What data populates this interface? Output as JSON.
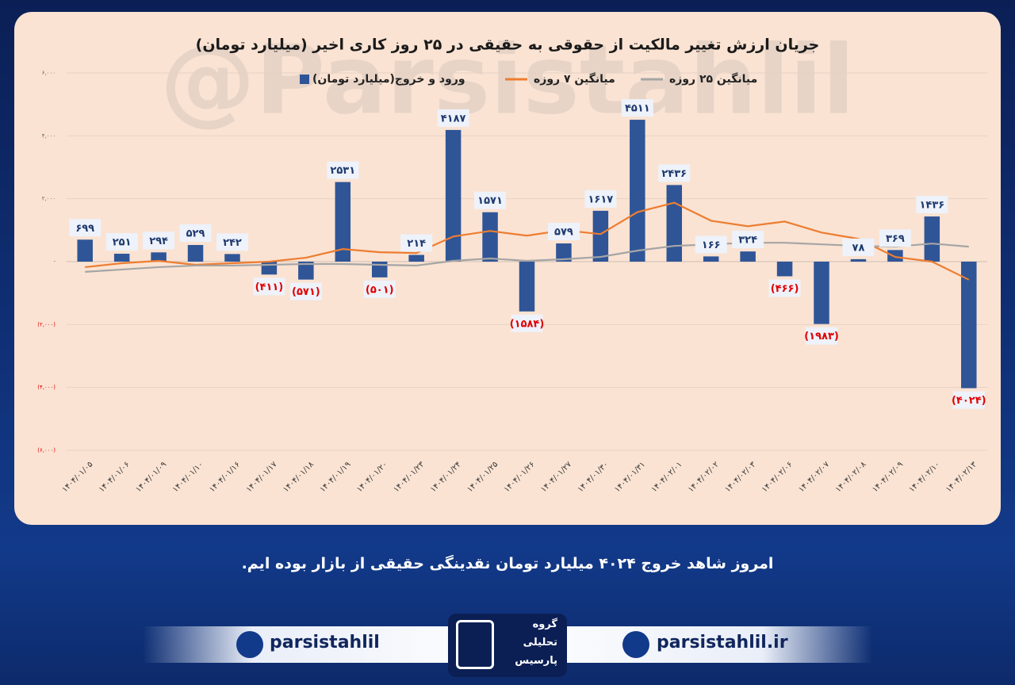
{
  "chart_data": {
    "type": "bar",
    "title": "جریان ارزش تغییر مالکیت از حقوقی به حقیقی در ۲۵ روز کاری اخیر (میلیارد تومان)",
    "categories": [
      "۱۴۰۴/۰۱/۰۵",
      "۱۴۰۴/۰۱/۰۶",
      "۱۴۰۴/۰۱/۰۹",
      "۱۴۰۴/۰۱/۱۰",
      "۱۴۰۴/۰۱/۱۶",
      "۱۴۰۴/۰۱/۱۷",
      "۱۴۰۴/۰۱/۱۸",
      "۱۴۰۴/۰۱/۱۹",
      "۱۴۰۴/۰۱/۲۰",
      "۱۴۰۴/۰۱/۲۳",
      "۱۴۰۴/۰۱/۲۴",
      "۱۴۰۴/۰۱/۲۵",
      "۱۴۰۴/۰۱/۲۶",
      "۱۴۰۴/۰۱/۲۷",
      "۱۴۰۴/۰۱/۳۰",
      "۱۴۰۴/۰۱/۳۱",
      "۱۴۰۴/۰۲/۰۱",
      "۱۴۰۴/۰۲/۰۲",
      "۱۴۰۴/۰۲/۰۳",
      "۱۴۰۴/۰۲/۰۶",
      "۱۴۰۴/۰۲/۰۷",
      "۱۴۰۴/۰۲/۰۸",
      "۱۴۰۴/۰۲/۰۹",
      "۱۴۰۴/۰۲/۱۰",
      "۱۴۰۴/۰۲/۱۳"
    ],
    "series": [
      {
        "name": "ورود و خروج(میلیارد تومان)",
        "type": "bar",
        "color": "#2f5597",
        "values": [
          699,
          251,
          294,
          529,
          242,
          -411,
          -571,
          2531,
          -501,
          214,
          4187,
          1571,
          -1584,
          579,
          1617,
          4511,
          2436,
          166,
          324,
          -466,
          -1983,
          78,
          369,
          1436,
          -4024
        ],
        "value_labels": [
          "۶۹۹",
          "۲۵۱",
          "۲۹۴",
          "۵۲۹",
          "۲۴۲",
          "(۴۱۱)",
          "(۵۷۱)",
          "۲۵۳۱",
          "(۵۰۱)",
          "۲۱۴",
          "۴۱۸۷",
          "۱۵۷۱",
          "(۱۵۸۴)",
          "۵۷۹",
          "۱۶۱۷",
          "۴۵۱۱",
          "۲۴۳۶",
          "۱۶۶",
          "۳۲۴",
          "(۴۶۶)",
          "(۱۹۸۳)",
          "۷۸",
          "۳۶۹",
          "۱۴۳۶",
          "(۴۰۲۴)"
        ]
      },
      {
        "name": "میانگین ۷ روزه",
        "type": "line",
        "color": "#ed7d31",
        "values": [
          -175,
          -50,
          25,
          -100,
          -50,
          0,
          125,
          400,
          300,
          275,
          800,
          975,
          825,
          1000,
          875,
          1575,
          1875,
          1300,
          1125,
          1275,
          925,
          725,
          150,
          0,
          -575
        ]
      },
      {
        "name": "میانگین ۲۵ روزه",
        "type": "line",
        "color": "#a5a5a5",
        "values": [
          -325,
          -250,
          -175,
          -125,
          -125,
          -100,
          -75,
          -75,
          -100,
          -125,
          25,
          100,
          25,
          75,
          150,
          350,
          500,
          550,
          600,
          600,
          550,
          500,
          475,
          575,
          475
        ]
      }
    ],
    "ylim": [
      -6000,
      6000
    ],
    "yticks": [
      {
        "value": -6000,
        "label": "(۶,۰۰۰)"
      },
      {
        "value": -4000,
        "label": "(۴,۰۰۰)"
      },
      {
        "value": -2000,
        "label": "(۲,۰۰۰)"
      },
      {
        "value": 0,
        "label": "-"
      },
      {
        "value": 2000,
        "label": "۲,۰۰۰"
      },
      {
        "value": 4000,
        "label": "۴,۰۰۰"
      },
      {
        "value": 6000,
        "label": "۶,۰۰۰"
      }
    ],
    "grid": true,
    "negative_color": "#e00000"
  },
  "watermark": "@Parsistahlil",
  "caption": "امروز شاهد خروج ۴۰۲۴ میلیارد تومان نقدینگی حقیقی از بازار بوده ایم.",
  "footer": {
    "telegram": "parsistahlil",
    "website": "parsistahlil.ir",
    "logo_text": [
      "گروه",
      "تحلیلی",
      "پارسیس"
    ]
  }
}
